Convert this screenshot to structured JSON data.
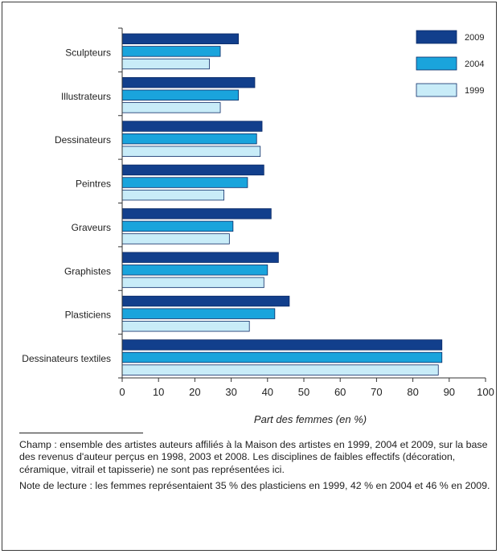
{
  "chart_data": {
    "type": "bar",
    "orientation": "horizontal",
    "categories": [
      "Sculpteurs",
      "Illustrateurs",
      "Dessinateurs",
      "Peintres",
      "Graveurs",
      "Graphistes",
      "Plasticiens",
      "Dessinateurs textiles"
    ],
    "series": [
      {
        "name": "2009",
        "color": "#123f8c",
        "values": [
          32,
          36.5,
          38.5,
          39,
          41,
          43,
          46,
          88
        ]
      },
      {
        "name": "2004",
        "color": "#1aa4dc",
        "values": [
          27,
          32,
          37,
          34.5,
          30.5,
          40,
          42,
          88
        ]
      },
      {
        "name": "1999",
        "color": "#c8ecf8",
        "values": [
          24,
          27,
          38,
          28,
          29.5,
          39,
          35,
          87
        ]
      }
    ],
    "xlabel": "Part des femmes (en %)",
    "xlim": [
      0,
      100
    ],
    "xticks": [
      0,
      10,
      20,
      30,
      40,
      50,
      60,
      70,
      80,
      90,
      100
    ],
    "grid": false,
    "legend_position": "top-right"
  },
  "notes": {
    "champ": "Champ : ensemble des artistes auteurs affiliés à la Maison des artistes en 1999, 2004 et 2009, sur la base des revenus d'auteur perçus en 1998, 2003 et 2008. Les disciplines de faibles effectifs (décoration, céramique, vitrail et tapisserie) ne sont pas représentées ici.",
    "lecture": "Note de lecture : les femmes représentaient 35 % des plasticiens en 1999, 42 % en 2004 et 46 % en 2009."
  }
}
